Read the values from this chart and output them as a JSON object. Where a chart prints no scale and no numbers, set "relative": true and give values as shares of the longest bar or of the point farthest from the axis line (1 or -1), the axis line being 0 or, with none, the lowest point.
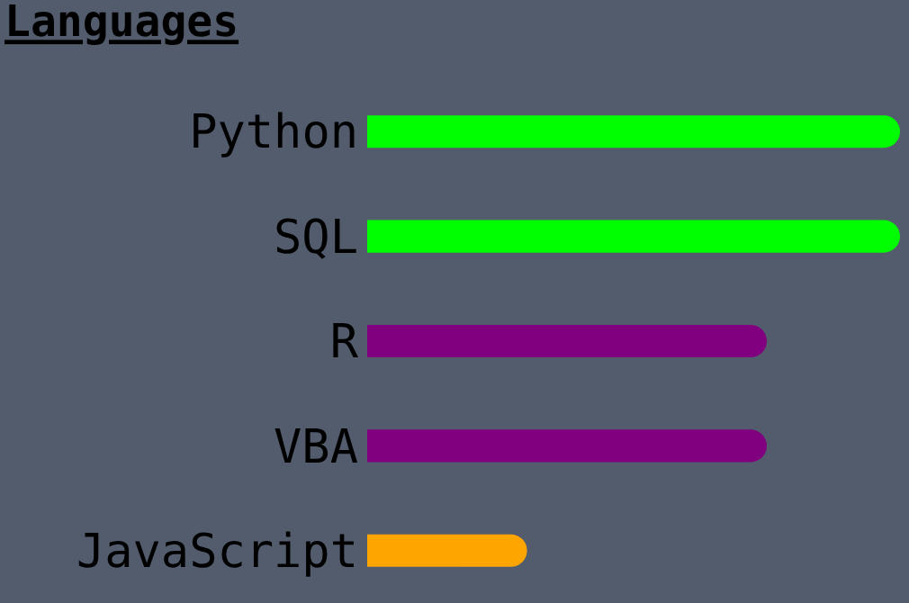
{
  "chart_data": {
    "type": "bar",
    "title": "Languages",
    "orientation": "horizontal",
    "relative": true,
    "categories": [
      "Python",
      "SQL",
      "R",
      "VBA",
      "JavaScript"
    ],
    "values": [
      1,
      1,
      0.75,
      0.75,
      0.3
    ],
    "colors": [
      "#00ff00",
      "#00ff00",
      "#800080",
      "#800080",
      "#ffa500"
    ]
  }
}
